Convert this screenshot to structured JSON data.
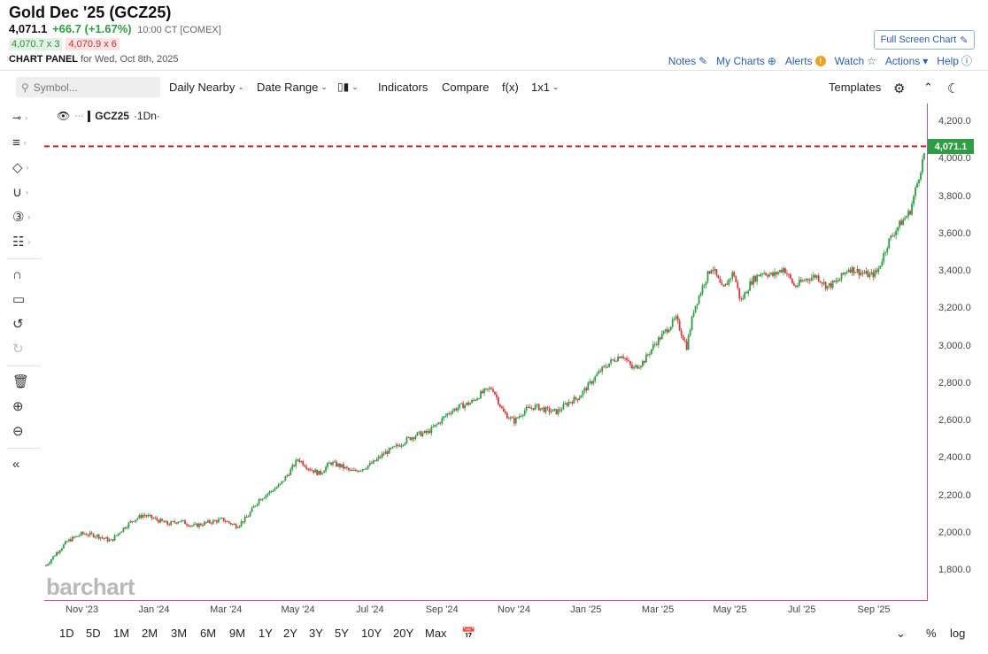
{
  "header": {
    "title": "Gold Dec '25 (GCZ25)",
    "last": "4,071.1",
    "change": "+66.7 (+1.67%)",
    "time": "10:00 CT [COMEX]",
    "bid": "4,070.7 x 3",
    "ask": "4,070.9 x 6",
    "panel_bold": "CHART PANEL",
    "panel_date": "for Wed, Oct 8th, 2025",
    "fullscreen": "Full Screen Chart",
    "links": [
      "Notes",
      "My Charts",
      "Alerts",
      "Watch",
      "Actions",
      "Help"
    ]
  },
  "toolbar": {
    "search_placeholder": "Symbol...",
    "daily_nearby": "Daily Nearby",
    "date_range": "Date Range",
    "indicators": "Indicators",
    "compare": "Compare",
    "fx": "f(x)",
    "layout": "1x1",
    "templates": "Templates"
  },
  "legend": {
    "symbol": "GCZ25",
    "interval": "·1Dn·"
  },
  "price_tag": "4,071.1",
  "watermark": "barchart",
  "range_buttons": [
    "1D",
    "5D",
    "1M",
    "2M",
    "3M",
    "6M",
    "9M",
    "1Y",
    "2Y",
    "3Y",
    "5Y",
    "10Y",
    "20Y",
    "Max"
  ],
  "range_right": {
    "percent": "%",
    "log": "log"
  },
  "colors": {
    "up": "#2e9e43",
    "down": "#d33b3b",
    "last_line": "#c62828",
    "accent": "#2b5fa8"
  },
  "chart_data": {
    "type": "candlestick",
    "symbol": "GCZ25",
    "title": "Gold Dec '25 (GCZ25)",
    "interval": "daily",
    "last_price": 4071.1,
    "ylim": [
      1640,
      4300
    ],
    "yticks": [
      1800,
      2000,
      2200,
      2400,
      2600,
      2800,
      3000,
      3200,
      3400,
      3600,
      3800,
      4000,
      4200
    ],
    "ytick_labels": [
      "1,800.0",
      "2,000.0",
      "2,200.0",
      "2,400.0",
      "2,600.0",
      "2,800.0",
      "3,000.0",
      "3,200.0",
      "3,400.0",
      "3,600.0",
      "3,800.0",
      "4,000.0",
      "4,200.0"
    ],
    "x_range_months": [
      0,
      24.5
    ],
    "x_months_from_oct23": [
      1,
      3,
      5,
      7,
      9,
      11,
      13,
      15,
      17,
      19,
      21,
      23
    ],
    "xtick_labels": [
      "Nov '23",
      "Jan '24",
      "Mar '24",
      "May '24",
      "Jul '24",
      "Sep '24",
      "Nov '24",
      "Jan '25",
      "Mar '25",
      "May '25",
      "Jul '25",
      "Sep '25"
    ],
    "series": [
      {
        "name": "GCZ25 close",
        "points": [
          [
            0.0,
            1830
          ],
          [
            0.3,
            1900
          ],
          [
            0.6,
            1960
          ],
          [
            1.0,
            2000
          ],
          [
            1.4,
            1990
          ],
          [
            1.8,
            1960
          ],
          [
            2.1,
            2020
          ],
          [
            2.4,
            2070
          ],
          [
            2.7,
            2100
          ],
          [
            3.0,
            2080
          ],
          [
            3.4,
            2050
          ],
          [
            3.7,
            2070
          ],
          [
            4.1,
            2040
          ],
          [
            4.5,
            2060
          ],
          [
            4.9,
            2075
          ],
          [
            5.3,
            2040
          ],
          [
            5.6,
            2090
          ],
          [
            5.9,
            2180
          ],
          [
            6.2,
            2220
          ],
          [
            6.5,
            2260
          ],
          [
            6.8,
            2340
          ],
          [
            7.0,
            2400
          ],
          [
            7.3,
            2350
          ],
          [
            7.6,
            2320
          ],
          [
            7.9,
            2380
          ],
          [
            8.2,
            2360
          ],
          [
            8.5,
            2330
          ],
          [
            8.8,
            2350
          ],
          [
            9.1,
            2380
          ],
          [
            9.4,
            2430
          ],
          [
            9.7,
            2460
          ],
          [
            10.0,
            2500
          ],
          [
            10.3,
            2530
          ],
          [
            10.6,
            2540
          ],
          [
            10.9,
            2590
          ],
          [
            11.2,
            2650
          ],
          [
            11.5,
            2680
          ],
          [
            11.8,
            2700
          ],
          [
            12.1,
            2750
          ],
          [
            12.4,
            2780
          ],
          [
            12.7,
            2650
          ],
          [
            13.0,
            2600
          ],
          [
            13.3,
            2660
          ],
          [
            13.6,
            2680
          ],
          [
            13.9,
            2660
          ],
          [
            14.2,
            2650
          ],
          [
            14.5,
            2700
          ],
          [
            14.8,
            2730
          ],
          [
            15.1,
            2800
          ],
          [
            15.4,
            2870
          ],
          [
            15.7,
            2920
          ],
          [
            16.0,
            2960
          ],
          [
            16.3,
            2880
          ],
          [
            16.6,
            2920
          ],
          [
            16.9,
            3010
          ],
          [
            17.2,
            3080
          ],
          [
            17.5,
            3150
          ],
          [
            17.8,
            3000
          ],
          [
            18.0,
            3200
          ],
          [
            18.3,
            3350
          ],
          [
            18.5,
            3430
          ],
          [
            18.8,
            3300
          ],
          [
            19.1,
            3400
          ],
          [
            19.3,
            3240
          ],
          [
            19.6,
            3350
          ],
          [
            19.9,
            3400
          ],
          [
            20.2,
            3380
          ],
          [
            20.5,
            3420
          ],
          [
            20.8,
            3320
          ],
          [
            21.1,
            3360
          ],
          [
            21.4,
            3380
          ],
          [
            21.7,
            3320
          ],
          [
            22.0,
            3350
          ],
          [
            22.3,
            3420
          ],
          [
            22.6,
            3400
          ],
          [
            22.9,
            3380
          ],
          [
            23.1,
            3400
          ],
          [
            23.4,
            3560
          ],
          [
            23.7,
            3650
          ],
          [
            24.0,
            3720
          ],
          [
            24.2,
            3870
          ],
          [
            24.45,
            4071
          ]
        ]
      }
    ]
  }
}
